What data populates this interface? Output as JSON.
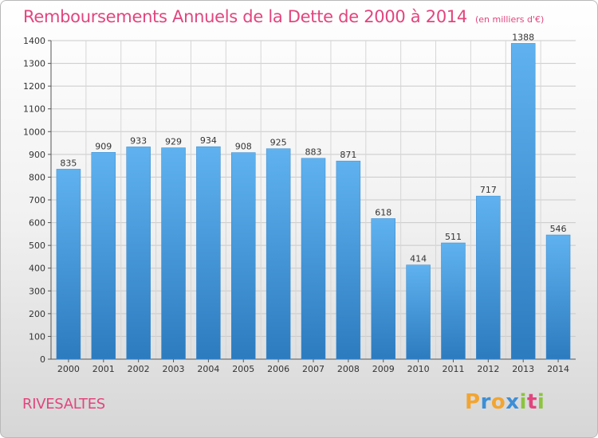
{
  "header": {
    "title": "Remboursements Annuels de la Dette de 2000 à 2014",
    "unit": "(en milliers d'€)"
  },
  "footer": {
    "commune": "RIVESALTES",
    "logo_letters": [
      "P",
      "r",
      "o",
      "x",
      "i",
      "t",
      "i"
    ]
  },
  "colors": {
    "accent": "#e2457d",
    "bar_top": "#5fb2ef",
    "bar_bottom": "#2c7bbf",
    "logo": [
      "#f2a531",
      "#3d8fd6",
      "#f2a531",
      "#3d8fd6",
      "#8cc43f",
      "#e2457d",
      "#8cc43f"
    ]
  },
  "chart_data": {
    "type": "bar",
    "title": "Remboursements Annuels de la Dette de 2000 à 2014",
    "xlabel": "",
    "ylabel": "",
    "categories": [
      "2000",
      "2001",
      "2002",
      "2003",
      "2004",
      "2005",
      "2006",
      "2007",
      "2008",
      "2009",
      "2010",
      "2011",
      "2012",
      "2013",
      "2014"
    ],
    "values": [
      835,
      909,
      933,
      929,
      934,
      908,
      925,
      883,
      871,
      618,
      414,
      511,
      717,
      1388,
      546
    ],
    "ylim": [
      0,
      1400
    ],
    "yticks": [
      0,
      100,
      200,
      300,
      400,
      500,
      600,
      700,
      800,
      900,
      1000,
      1100,
      1200,
      1300,
      1400
    ],
    "grid": true
  }
}
